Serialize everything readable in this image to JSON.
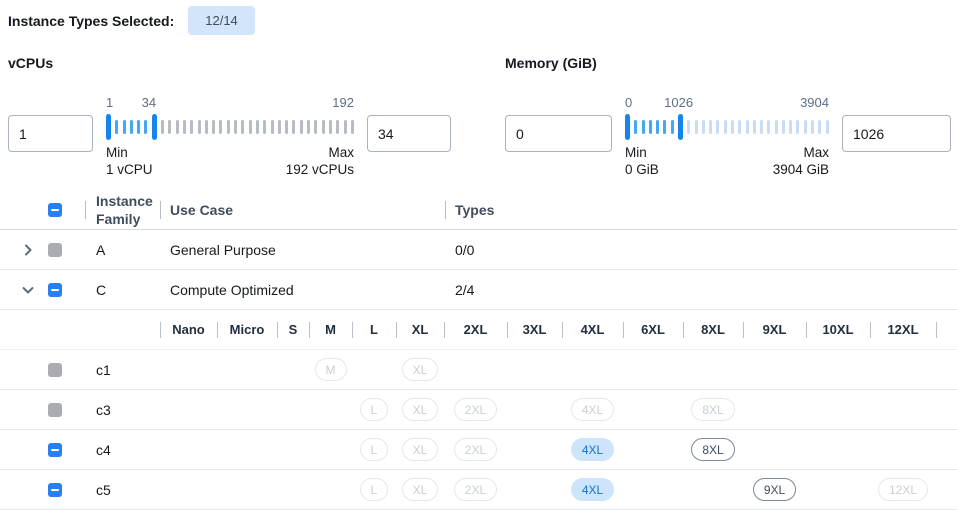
{
  "header": {
    "label": "Instance Types Selected:",
    "badge": "12/14"
  },
  "filters": {
    "vcpus": {
      "title": "vCPUs",
      "low_value": "1",
      "high_value": "34",
      "slider": {
        "min": 1,
        "max": 192,
        "low": 1,
        "high": 34,
        "ticks": 34,
        "min_label": "1",
        "cur_label": "34",
        "max_label": "192",
        "min_caption": "Min",
        "max_caption": "Max",
        "min_sub": "1 vCPU",
        "max_sub": "192 vCPUs",
        "after_tick_color": "#b5bcc4"
      }
    },
    "memory": {
      "title": "Memory (GiB)",
      "low_value": "0",
      "high_value": "1026",
      "slider": {
        "min": 0,
        "max": 3904,
        "low": 0,
        "high": 1026,
        "ticks": 28,
        "min_label": "0",
        "cur_label": "1026",
        "max_label": "3904",
        "min_caption": "Min",
        "max_caption": "Max",
        "min_sub": "0 GiB",
        "max_sub": "3904 GiB",
        "after_tick_color": "#c8ddf4"
      }
    }
  },
  "table": {
    "columns": {
      "family": "Instance Family",
      "use_case": "Use Case",
      "types": "Types"
    },
    "size_columns": [
      "Nano",
      "Micro",
      "S",
      "M",
      "L",
      "XL",
      "2XL",
      "3XL",
      "4XL",
      "6XL",
      "8XL",
      "9XL",
      "10XL",
      "12XL"
    ],
    "family_rows": [
      {
        "family": "A",
        "use_case": "General Purpose",
        "types": "0/0",
        "chevron": "right",
        "checkbox": "disabled",
        "expanded": false
      },
      {
        "family": "C",
        "use_case": "Compute Optimized",
        "types": "2/4",
        "chevron": "down",
        "checkbox": "indeterminate",
        "expanded": true
      }
    ],
    "instance_rows": [
      {
        "name": "c1",
        "checkbox": "disabled",
        "sizes": {
          "M": "disabled",
          "XL": "disabled"
        }
      },
      {
        "name": "c3",
        "checkbox": "disabled",
        "sizes": {
          "L": "disabled",
          "XL": "disabled",
          "2XL": "disabled",
          "4XL": "disabled",
          "8XL": "disabled"
        }
      },
      {
        "name": "c4",
        "checkbox": "indeterminate",
        "sizes": {
          "L": "disabled",
          "XL": "disabled",
          "2XL": "disabled",
          "4XL": "selected",
          "8XL": "enabled"
        }
      },
      {
        "name": "c5",
        "checkbox": "indeterminate",
        "sizes": {
          "L": "disabled",
          "XL": "disabled",
          "2XL": "disabled",
          "4XL": "selected",
          "9XL": "enabled",
          "12XL": "disabled"
        }
      }
    ]
  },
  "colors": {
    "accent_blue": "#2680f2",
    "slider_handle_blue": "#1585ec",
    "slider_range_tick_blue": "#45a6f1",
    "badge_bg": "#d2e5fb",
    "selected_pill_bg": "#cde4fa",
    "selected_pill_text": "#1072d8",
    "disabled_checkbox_gray": "#a9adb3"
  }
}
